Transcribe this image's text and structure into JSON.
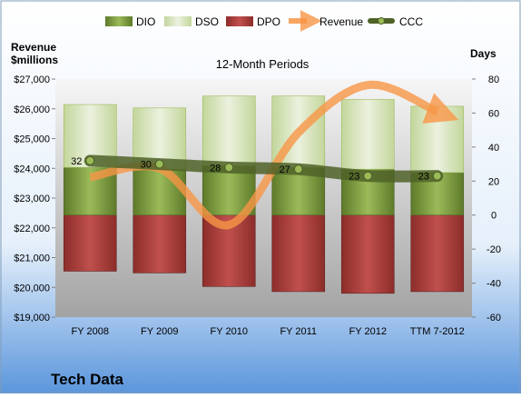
{
  "chart_data": {
    "type": "bar",
    "title": "12-Month Periods",
    "company": "Tech Data",
    "left_axis_label": [
      "Revenue",
      "$millions"
    ],
    "right_axis_label": "Days",
    "categories": [
      "FY 2008",
      "FY 2009",
      "FY 2010",
      "FY 2011",
      "FY 2012",
      "TTM 7-2012"
    ],
    "left_axis": {
      "ylim": [
        19000,
        27000
      ],
      "ticks": [
        19000,
        20000,
        21000,
        22000,
        23000,
        24000,
        25000,
        26000,
        27000
      ],
      "tick_labels": [
        "$19,000",
        "$20,000",
        "$21,000",
        "$22,000",
        "$23,000",
        "$24,000",
        "$25,000",
        "$26,000",
        "$27,000"
      ]
    },
    "right_axis": {
      "ylim": [
        -60,
        80
      ],
      "ticks": [
        -60,
        -40,
        -20,
        0,
        20,
        40,
        60,
        80
      ],
      "tick_labels": [
        "-60",
        "-40",
        "-20",
        "0",
        "20",
        "40",
        "60",
        "80"
      ]
    },
    "grid": false,
    "legend_position": "top",
    "series": [
      {
        "name": "DIO",
        "axis": "right",
        "kind": "stacked-bar",
        "color": "#77933C",
        "values": [
          28,
          27,
          29,
          28,
          27,
          25
        ]
      },
      {
        "name": "DSO",
        "axis": "right",
        "kind": "stacked-bar",
        "color": "#D7E4BD",
        "values": [
          37,
          36,
          41,
          42,
          41,
          39
        ]
      },
      {
        "name": "DPO",
        "axis": "right",
        "kind": "stacked-bar-negative",
        "color": "#C0504D",
        "values": [
          -33,
          -34,
          -42,
          -45,
          -46,
          -45
        ]
      },
      {
        "name": "Revenue",
        "axis": "left",
        "kind": "line",
        "color": "#F79646",
        "values": [
          23700,
          24000,
          22100,
          25200,
          26800,
          25900
        ]
      },
      {
        "name": "CCC",
        "axis": "right",
        "kind": "line-markers",
        "color": "#4F6228",
        "values": [
          32,
          30,
          28,
          27,
          23,
          23
        ]
      }
    ],
    "data_labels": [
      "32",
      "30",
      "28",
      "27",
      "23",
      "23"
    ]
  },
  "colors": {
    "background_top": "#FFFFFF",
    "background_bottom": "#5B96DC",
    "plot_top": "#F4F4F4",
    "plot_bottom": "#A6A6A6"
  }
}
